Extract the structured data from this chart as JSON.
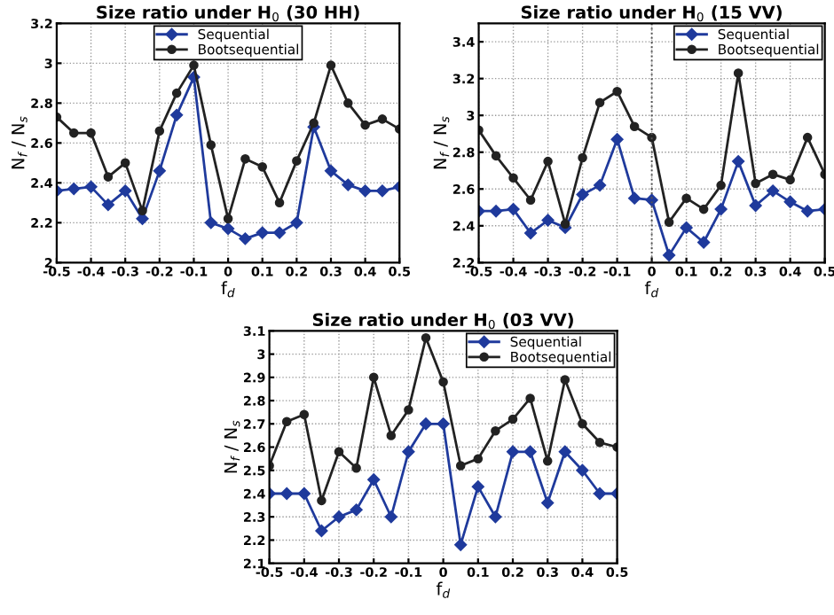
{
  "chart_data": [
    {
      "type": "line",
      "title": "Size ratio under H$_{0}$ (30 HH)",
      "xlabel": "f$_{d}$",
      "ylabel": "N$_{f}$ / N$_{s}$",
      "x": [
        -0.5,
        -0.45,
        -0.4,
        -0.35,
        -0.3,
        -0.25,
        -0.2,
        -0.15,
        -0.1,
        -0.05,
        0,
        0.05,
        0.1,
        0.15,
        0.2,
        0.25,
        0.3,
        0.35,
        0.4,
        0.45,
        0.5
      ],
      "series": [
        {
          "name": "Sequential",
          "color": "#1f3a9c",
          "marker": "diamond",
          "values": [
            2.36,
            2.37,
            2.38,
            2.29,
            2.36,
            2.22,
            2.46,
            2.74,
            2.93,
            2.2,
            2.17,
            2.12,
            2.15,
            2.15,
            2.2,
            2.68,
            2.46,
            2.39,
            2.36,
            2.36,
            2.38
          ]
        },
        {
          "name": "Bootsequential",
          "color": "#222222",
          "marker": "circle",
          "values": [
            2.73,
            2.65,
            2.65,
            2.43,
            2.5,
            2.26,
            2.66,
            2.85,
            2.99,
            2.59,
            2.22,
            2.52,
            2.48,
            2.3,
            2.51,
            2.7,
            2.99,
            2.8,
            2.69,
            2.72,
            2.67
          ]
        }
      ],
      "xlim": [
        -0.5,
        0.5
      ],
      "xticks": [
        -0.5,
        -0.4,
        -0.3,
        -0.2,
        -0.1,
        0,
        0.1,
        0.2,
        0.3,
        0.4,
        0.5
      ],
      "ylim": [
        2,
        3.2
      ],
      "yticks": [
        2,
        2.2,
        2.4,
        2.6,
        2.8,
        3,
        3.2
      ],
      "grid": true,
      "legend": "top",
      "line_style": "solid"
    },
    {
      "type": "line",
      "title": "Size ratio under H$_{0}$ (15 VV)",
      "xlabel": "f$_{d}$",
      "ylabel": "N$_{f}$ / N$_{s}$",
      "x": [
        -0.5,
        -0.45,
        -0.4,
        -0.35,
        -0.3,
        -0.25,
        -0.2,
        -0.15,
        -0.1,
        -0.05,
        0,
        0.05,
        0.1,
        0.15,
        0.2,
        0.25,
        0.3,
        0.35,
        0.4,
        0.45,
        0.5
      ],
      "series": [
        {
          "name": "Sequential",
          "color": "#1f3a9c",
          "marker": "diamond",
          "values": [
            2.48,
            2.48,
            2.49,
            2.36,
            2.43,
            2.39,
            2.57,
            2.62,
            2.87,
            2.55,
            2.54,
            2.24,
            2.39,
            2.31,
            2.49,
            2.75,
            2.51,
            2.59,
            2.53,
            2.48,
            2.49
          ]
        },
        {
          "name": "Bootsequential",
          "color": "#222222",
          "marker": "circle",
          "values": [
            2.92,
            2.78,
            2.66,
            2.54,
            2.75,
            2.41,
            2.77,
            3.07,
            3.13,
            2.94,
            2.88,
            2.42,
            2.55,
            2.49,
            2.62,
            3.23,
            2.63,
            2.68,
            2.65,
            2.88,
            2.68
          ]
        }
      ],
      "xlim": [
        -0.5,
        0.5
      ],
      "xticks": [
        -0.5,
        -0.4,
        -0.3,
        -0.2,
        -0.1,
        0,
        0.1,
        0.2,
        0.3,
        0.4,
        0.5
      ],
      "ylim": [
        2.2,
        3.5
      ],
      "yticks": [
        2.2,
        2.4,
        2.6,
        2.8,
        3,
        3.2,
        3.4
      ],
      "ref_lines": [
        {
          "axis": "x",
          "value": 0,
          "color": "#555555",
          "line_style": "dotted"
        }
      ],
      "grid": true,
      "legend": "top right",
      "line_style": "solid"
    },
    {
      "type": "line",
      "title": "Size ratio under H$_{0}$ (03 VV)",
      "xlabel": "f$_{d}$",
      "ylabel": "N$_{f}$ / N$_{s}$",
      "x": [
        -0.5,
        -0.45,
        -0.4,
        -0.35,
        -0.3,
        -0.25,
        -0.2,
        -0.15,
        -0.1,
        -0.05,
        0,
        0.05,
        0.1,
        0.15,
        0.2,
        0.25,
        0.3,
        0.35,
        0.4,
        0.45,
        0.5
      ],
      "series": [
        {
          "name": "Sequential",
          "color": "#1f3a9c",
          "marker": "diamond",
          "values": [
            2.4,
            2.4,
            2.4,
            2.24,
            2.3,
            2.33,
            2.46,
            2.3,
            2.58,
            2.7,
            2.7,
            2.18,
            2.43,
            2.3,
            2.58,
            2.58,
            2.36,
            2.58,
            2.5,
            2.4,
            2.4
          ]
        },
        {
          "name": "Bootsequential",
          "color": "#222222",
          "marker": "circle",
          "values": [
            2.52,
            2.71,
            2.74,
            2.37,
            2.58,
            2.51,
            2.9,
            2.65,
            2.76,
            3.07,
            2.88,
            2.52,
            2.55,
            2.67,
            2.72,
            2.81,
            2.54,
            2.89,
            2.7,
            2.62,
            2.6
          ]
        }
      ],
      "xlim": [
        -0.5,
        0.5
      ],
      "xticks": [
        -0.5,
        -0.4,
        -0.3,
        -0.2,
        -0.1,
        0,
        0.1,
        0.2,
        0.3,
        0.4,
        0.5
      ],
      "ylim": [
        2.1,
        3.1
      ],
      "yticks": [
        2.1,
        2.2,
        2.3,
        2.4,
        2.5,
        2.6,
        2.7,
        2.8,
        2.9,
        3,
        3.1
      ],
      "grid": true,
      "legend": "top right",
      "line_style": "solid"
    }
  ]
}
